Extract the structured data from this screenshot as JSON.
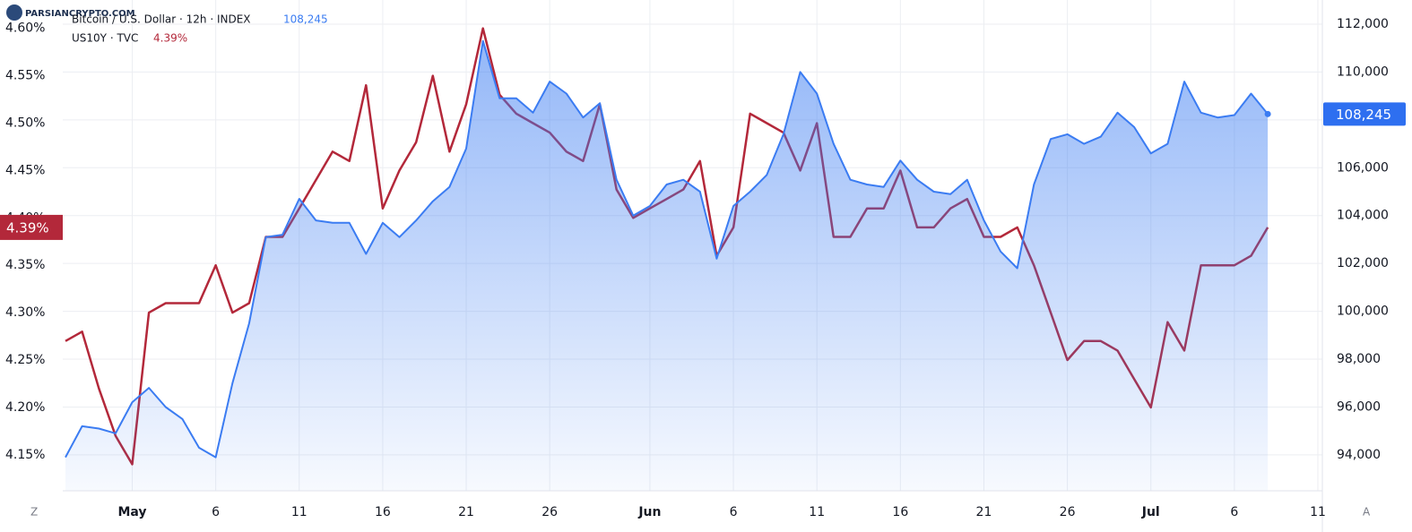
{
  "chart_data": {
    "type": "line",
    "watermark": "PARSIANCRYPTO.COM",
    "buttons": [
      "Z",
      "A"
    ],
    "categories": [
      null,
      null,
      null,
      null,
      "May",
      null,
      null,
      null,
      null,
      "6",
      null,
      null,
      null,
      null,
      "11",
      null,
      null,
      null,
      null,
      "16",
      null,
      null,
      null,
      null,
      "21",
      null,
      null,
      null,
      null,
      "26",
      null,
      null,
      null,
      null,
      null,
      "Jun",
      null,
      null,
      null,
      null,
      "6",
      null,
      null,
      null,
      null,
      "11",
      null,
      null,
      null,
      null,
      "16",
      null,
      null,
      null,
      null,
      "21",
      null,
      null,
      null,
      null,
      "26",
      null,
      null,
      null,
      null,
      "Jul",
      null,
      null,
      null,
      null,
      "6",
      null,
      null,
      null,
      null,
      "11"
    ],
    "series": [
      {
        "name": "Bitcoin / U.S. Dollar · 12h · INDEX",
        "color": "#3b7cf2",
        "axis": "y2",
        "area": true,
        "values": [
          93900,
          95200,
          95100,
          94900,
          96200,
          96800,
          96000,
          95500,
          94300,
          93900,
          97000,
          99500,
          103100,
          103200,
          104700,
          103800,
          103700,
          103700,
          102400,
          103700,
          103100,
          103800,
          104600,
          105200,
          106800,
          111300,
          108900,
          108900,
          108300,
          109600,
          109100,
          108100,
          108700,
          105500,
          104000,
          104400,
          105300,
          105500,
          105000,
          102200,
          104400,
          105000,
          105700,
          107400,
          110000,
          109100,
          107000,
          105500,
          105300,
          105200,
          106300,
          105500,
          105000,
          104900,
          105500,
          103800,
          102500,
          101800,
          105300,
          107200,
          107400,
          107000,
          107300,
          108300,
          107700,
          106600,
          107000,
          109600,
          108300,
          108100,
          108200,
          109100,
          108245,
          null,
          null,
          null
        ],
        "value_labels": [
          null,
          null,
          null,
          null,
          null,
          null,
          null,
          null,
          null,
          null,
          null,
          null,
          null,
          null,
          null,
          null,
          null,
          null,
          null,
          null,
          null,
          null,
          null,
          null,
          null,
          null,
          null,
          null,
          null,
          null,
          null,
          null,
          null,
          null,
          null,
          null,
          null,
          null,
          null,
          null,
          null,
          null,
          null,
          null,
          null,
          null,
          null,
          null,
          null,
          null,
          null,
          null,
          null,
          null,
          null,
          null,
          null,
          null,
          null,
          null,
          null,
          null,
          null,
          null,
          null,
          null,
          null,
          null,
          null,
          null,
          null,
          null,
          "108,245",
          null,
          null,
          null
        ]
      },
      {
        "name": "US10Y · TVC",
        "color": "#b3283a",
        "axis": "y",
        "values": [
          4.27,
          4.28,
          4.22,
          4.17,
          4.14,
          4.3,
          4.31,
          4.31,
          4.31,
          4.35,
          4.3,
          4.31,
          4.38,
          4.38,
          4.41,
          4.44,
          4.47,
          4.46,
          4.54,
          4.41,
          4.45,
          4.48,
          4.55,
          4.47,
          4.52,
          4.6,
          4.53,
          4.51,
          4.5,
          4.49,
          4.47,
          4.46,
          4.52,
          4.43,
          4.4,
          4.41,
          4.42,
          4.43,
          4.46,
          4.36,
          4.39,
          4.51,
          4.5,
          4.49,
          4.45,
          4.5,
          4.38,
          4.38,
          4.41,
          4.41,
          4.45,
          4.39,
          4.39,
          4.41,
          4.42,
          4.38,
          4.38,
          4.39,
          4.35,
          4.3,
          4.25,
          4.27,
          4.27,
          4.26,
          4.23,
          4.2,
          4.29,
          4.26,
          4.35,
          4.35,
          4.35,
          4.36,
          4.39,
          null,
          null,
          null
        ],
        "value_labels": [
          null,
          null,
          null,
          null,
          null,
          null,
          null,
          null,
          null,
          null,
          null,
          null,
          null,
          null,
          null,
          null,
          null,
          null,
          null,
          null,
          null,
          null,
          null,
          null,
          null,
          null,
          null,
          null,
          null,
          null,
          null,
          null,
          null,
          null,
          null,
          null,
          null,
          null,
          null,
          null,
          null,
          null,
          null,
          null,
          null,
          null,
          null,
          null,
          null,
          null,
          null,
          null,
          null,
          null,
          null,
          null,
          null,
          null,
          null,
          null,
          null,
          null,
          null,
          null,
          null,
          null,
          null,
          null,
          null,
          null,
          null,
          null,
          "4.39%",
          null,
          null,
          null
        ]
      }
    ],
    "ylim": [
      4.112,
      4.63
    ],
    "yticks": [
      {
        "value": 4.15,
        "label": "4.15%"
      },
      {
        "value": 4.2,
        "label": "4.20%"
      },
      {
        "value": 4.25,
        "label": "4.25%"
      },
      {
        "value": 4.3,
        "label": "4.30%"
      },
      {
        "value": 4.35,
        "label": "4.35%"
      },
      {
        "value": 4.4,
        "label": "4.40%"
      },
      {
        "value": 4.45,
        "label": "4.45%"
      },
      {
        "value": 4.5,
        "label": "4.50%"
      },
      {
        "value": 4.55,
        "label": "4.55%"
      },
      {
        "value": 4.6,
        "label": "4.60%"
      }
    ],
    "y2lim": [
      92500,
      113010
    ],
    "y2ticks": [
      {
        "value": 94000,
        "label": "94,000"
      },
      {
        "value": 96000,
        "label": "96,000"
      },
      {
        "value": 98000,
        "label": "98,000"
      },
      {
        "value": 100000,
        "label": "100,000"
      },
      {
        "value": 102000,
        "label": "102,000"
      },
      {
        "value": 104000,
        "label": "104,000"
      },
      {
        "value": 106000,
        "label": "106,000"
      },
      {
        "value": 108000,
        "label": "108,000"
      },
      {
        "value": 110000,
        "label": "110,000"
      },
      {
        "value": 112000,
        "label": "112,000"
      }
    ],
    "grid": true
  }
}
